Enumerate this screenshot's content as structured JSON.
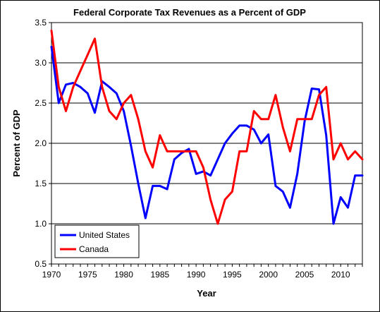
{
  "chart_data": {
    "type": "line",
    "title": "Federal Corporate Tax Revenues as a Percent of GDP",
    "xlabel": "Year",
    "ylabel": "Percent of GDP",
    "xlim": [
      1970,
      2013
    ],
    "ylim": [
      0.5,
      3.5
    ],
    "xticks": [
      1970,
      1975,
      1980,
      1985,
      1990,
      1995,
      2000,
      2005,
      2010
    ],
    "yticks": [
      "0.5",
      "1.0",
      "1.5",
      "2.0",
      "2.5",
      "3.0",
      "3.5"
    ],
    "grid": "horizontal",
    "legend_position": "bottom-left",
    "series": [
      {
        "name": "United States",
        "color": "#0000ff",
        "x": [
          1970,
          1971,
          1972,
          1973,
          1974,
          1975,
          1976,
          1977,
          1978,
          1979,
          1980,
          1981,
          1982,
          1983,
          1984,
          1985,
          1986,
          1987,
          1988,
          1989,
          1990,
          1991,
          1992,
          1993,
          1994,
          1995,
          1996,
          1997,
          1998,
          1999,
          2000,
          2001,
          2002,
          2003,
          2004,
          2005,
          2006,
          2007,
          2008,
          2009,
          2010,
          2011,
          2012,
          2013
        ],
        "values": [
          3.2,
          2.5,
          2.73,
          2.75,
          2.7,
          2.62,
          2.38,
          2.77,
          2.7,
          2.62,
          2.4,
          1.97,
          1.5,
          1.07,
          1.47,
          1.47,
          1.43,
          1.8,
          1.88,
          1.93,
          1.62,
          1.65,
          1.6,
          1.8,
          2.0,
          2.12,
          2.22,
          2.22,
          2.17,
          2.0,
          2.11,
          1.47,
          1.4,
          1.2,
          1.62,
          2.27,
          2.68,
          2.67,
          2.1,
          1.0,
          1.33,
          1.2,
          1.6,
          1.6
        ]
      },
      {
        "name": "Canada",
        "color": "#ff0000",
        "x": [
          1970,
          1971,
          1972,
          1973,
          1974,
          1975,
          1976,
          1977,
          1978,
          1979,
          1980,
          1981,
          1982,
          1983,
          1984,
          1985,
          1986,
          1987,
          1988,
          1989,
          1990,
          1991,
          1992,
          1993,
          1994,
          1995,
          1996,
          1997,
          1998,
          1999,
          2000,
          2001,
          2002,
          2003,
          2004,
          2005,
          2006,
          2007,
          2008,
          2009,
          2010,
          2011,
          2012,
          2013
        ],
        "values": [
          3.4,
          2.7,
          2.4,
          2.7,
          2.9,
          3.1,
          3.3,
          2.7,
          2.4,
          2.3,
          2.5,
          2.6,
          2.3,
          1.9,
          1.7,
          2.1,
          1.9,
          1.9,
          1.9,
          1.9,
          1.9,
          1.7,
          1.3,
          1.0,
          1.3,
          1.4,
          1.9,
          1.9,
          2.4,
          2.3,
          2.3,
          2.6,
          2.2,
          1.9,
          2.3,
          2.3,
          2.3,
          2.6,
          2.7,
          1.8,
          2.0,
          1.8,
          1.9,
          1.8
        ]
      }
    ]
  }
}
